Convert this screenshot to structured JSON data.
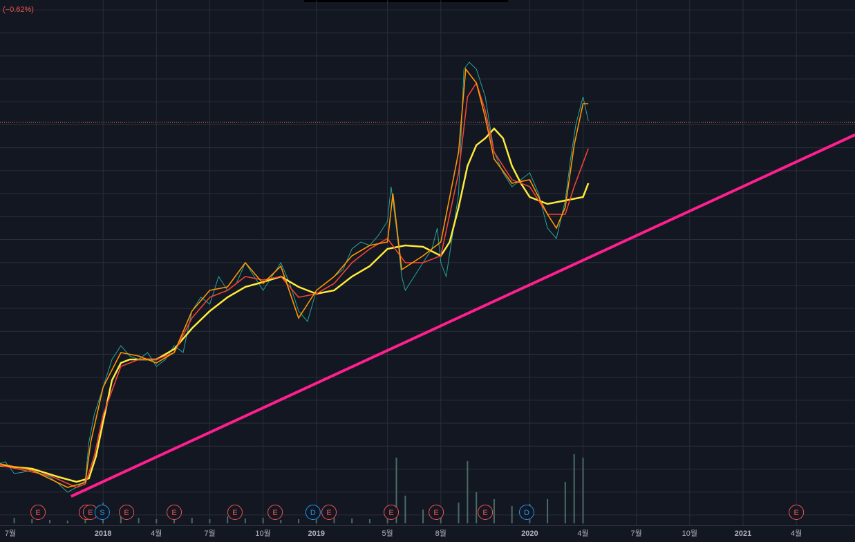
{
  "chart_data": {
    "type": "line",
    "change_text": "(−0.62%)",
    "xlim": [
      0.2,
      48.3
    ],
    "ylim": [
      0,
      784
    ],
    "xticks": [
      {
        "value": 0,
        "label": "7월"
      },
      {
        "value": 6,
        "label": "2018"
      },
      {
        "value": 9,
        "label": "4월"
      },
      {
        "value": 12,
        "label": "7월"
      },
      {
        "value": 15,
        "label": "10월"
      },
      {
        "value": 18,
        "label": "2019"
      },
      {
        "value": 22,
        "label": "5월"
      },
      {
        "value": 25,
        "label": "8월"
      },
      {
        "value": 30,
        "label": "2020"
      },
      {
        "value": 33,
        "label": "4월"
      },
      {
        "value": 36,
        "label": "7월"
      },
      {
        "value": 39,
        "label": "10월"
      },
      {
        "value": 42,
        "label": "2021"
      },
      {
        "value": 45,
        "label": "4월"
      }
    ],
    "grid": true,
    "series": [
      {
        "color": "#26a69a",
        "x": [
          0,
          0.5,
          1,
          1.5,
          2,
          2.5,
          3,
          3.5,
          4,
          4.5,
          5,
          5.2,
          5.5,
          6,
          6.5,
          7,
          7.5,
          8,
          8.5,
          9,
          9.5,
          10,
          10.5,
          11,
          11.5,
          12,
          12.5,
          13,
          13.5,
          14,
          14.5,
          15,
          15.5,
          16,
          16.5,
          17,
          17.5,
          18,
          18.5,
          19,
          19.5,
          20,
          20.5,
          21,
          21.5,
          22,
          22.2,
          22.5,
          22.8,
          23,
          23.5,
          24,
          24.5,
          24.8,
          25,
          25.3,
          25.6,
          26,
          26.3,
          26.6,
          27,
          27.5,
          28,
          28.5,
          29,
          29.5,
          30,
          30.5,
          31,
          31.5,
          32,
          32.3,
          32.6,
          33,
          33.3
        ],
        "values": [
          112,
          116,
          99,
          101,
          104,
          99,
          94,
          84,
          72,
          79,
          89,
          144,
          184,
          224,
          264,
          284,
          269,
          264,
          274,
          254,
          264,
          284,
          274,
          334,
          354,
          344,
          384,
          364,
          374,
          404,
          384,
          364,
          384,
          404,
          374,
          334,
          319,
          364,
          374,
          384,
          394,
          424,
          434,
          429,
          444,
          464,
          514,
          454,
          384,
          364,
          384,
          404,
          424,
          454,
          404,
          384,
          434,
          504,
          684,
          694,
          684,
          644,
          564,
          534,
          514,
          524,
          534,
          504,
          454,
          439,
          494,
          554,
          604,
          644,
          609
        ]
      },
      {
        "color": "#ffeb3b",
        "x": [
          0,
          2,
          3.5,
          4.5,
          5.2,
          5.6,
          6,
          6.5,
          7,
          7.5,
          8,
          8.5,
          9,
          10,
          11,
          12,
          13,
          14,
          15,
          16,
          17,
          18,
          19,
          20,
          21,
          22,
          23,
          24,
          25,
          25.5,
          26,
          26.5,
          27,
          27.5,
          28,
          28.5,
          29,
          29.5,
          30,
          31,
          32,
          33,
          33.3
        ],
        "values": [
          111,
          106,
          94,
          87,
          92,
          124,
          174,
          234,
          259,
          264,
          264,
          264,
          264,
          279,
          309,
          334,
          354,
          369,
          376,
          384,
          369,
          359,
          364,
          384,
          399,
          424,
          429,
          427,
          414,
          434,
          484,
          544,
          574,
          584,
          598,
          584,
          544,
          519,
          499,
          489,
          494,
          499,
          519
        ]
      },
      {
        "color": "#f44336",
        "x": [
          0,
          3,
          4.5,
          5,
          5.5,
          6,
          7,
          8,
          9,
          10,
          11,
          12,
          13,
          14,
          15,
          16,
          17,
          18,
          19,
          20,
          21,
          22,
          23,
          24,
          25,
          26,
          26.5,
          27,
          27.5,
          28,
          29,
          30,
          31,
          32,
          32.5,
          33.3
        ],
        "values": [
          112,
          96,
          79,
          84,
          124,
          184,
          254,
          264,
          264,
          274,
          324,
          354,
          364,
          384,
          379,
          384,
          354,
          359,
          374,
          404,
          424,
          439,
          404,
          404,
          414,
          534,
          644,
          664,
          624,
          564,
          524,
          514,
          474,
          474,
          514,
          569
        ]
      },
      {
        "color": "#ff9800",
        "x": [
          0,
          2,
          4,
          5,
          5.3,
          6,
          7,
          8,
          9,
          10,
          11,
          12,
          13,
          14,
          15,
          16,
          17,
          18,
          19,
          20,
          21,
          22,
          22.3,
          22.8,
          24,
          25,
          26,
          26.4,
          27,
          27.5,
          28,
          29,
          30,
          31,
          31.5,
          32,
          32.5,
          33,
          33.3
        ],
        "values": [
          114,
          104,
          79,
          86,
          144,
          224,
          274,
          269,
          259,
          274,
          334,
          364,
          369,
          404,
          374,
          399,
          324,
          364,
          384,
          414,
          429,
          434,
          504,
          394,
          414,
          434,
          564,
          684,
          664,
          614,
          554,
          519,
          524,
          474,
          454,
          484,
          574,
          634,
          634
        ]
      }
    ],
    "trendline": {
      "x": [
        4.2,
        48.3
      ],
      "values": [
        66,
        589
      ],
      "color": "#ff1f8e"
    },
    "last_price": {
      "value": 607,
      "color": "#f0825a"
    },
    "volume": {
      "color": "#4a6b66",
      "base": 757,
      "x": [
        0,
        1,
        2,
        3,
        4,
        5,
        6,
        7,
        8,
        9,
        10,
        11,
        12,
        13,
        14,
        15,
        16,
        17,
        18,
        19,
        20,
        21,
        22,
        22.5,
        23,
        24,
        25,
        26,
        26.5,
        27,
        28,
        29,
        30,
        31,
        32,
        32.5,
        33
      ],
      "values": [
        40,
        8,
        6,
        5,
        4,
        6,
        30,
        14,
        8,
        6,
        5,
        8,
        6,
        10,
        7,
        8,
        5,
        6,
        9,
        8,
        7,
        6,
        22,
        95,
        40,
        20,
        18,
        30,
        90,
        45,
        35,
        25,
        28,
        35,
        60,
        100,
        95
      ]
    },
    "events": [
      {
        "x": 2.34,
        "label": "E",
        "color": "#f05350"
      },
      {
        "x": 5.06,
        "label": "E",
        "color": "#f05350"
      },
      {
        "x": 5.29,
        "label": "E",
        "color": "#f05350"
      },
      {
        "x": 5.95,
        "label": "S",
        "color": "#2196f3"
      },
      {
        "x": 7.32,
        "label": "E",
        "color": "#f05350"
      },
      {
        "x": 10.0,
        "label": "E",
        "color": "#f05350"
      },
      {
        "x": 13.42,
        "label": "E",
        "color": "#f05350"
      },
      {
        "x": 15.68,
        "label": "E",
        "color": "#f05350"
      },
      {
        "x": 17.81,
        "label": "D",
        "color": "#2196f3"
      },
      {
        "x": 18.71,
        "label": "E",
        "color": "#f05350"
      },
      {
        "x": 22.21,
        "label": "E",
        "color": "#f05350"
      },
      {
        "x": 24.74,
        "label": "E",
        "color": "#f05350"
      },
      {
        "x": 27.5,
        "label": "E",
        "color": "#f05350"
      },
      {
        "x": 29.83,
        "label": "D",
        "color": "#2196f3"
      },
      {
        "x": 45.0,
        "label": "E",
        "color": "#f05350"
      }
    ]
  }
}
